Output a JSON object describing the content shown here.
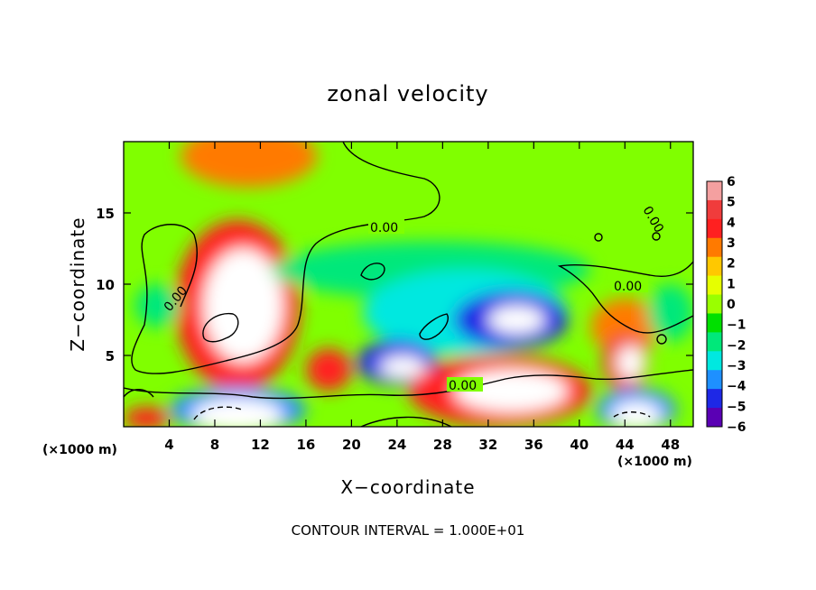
{
  "chart_data": {
    "type": "heatmap",
    "title": "zonal velocity",
    "xlabel": "X−coordinate",
    "ylabel": "Z−coordinate",
    "x_unit_label": "(×1000 m)",
    "y_unit_label": "(×1000 m)",
    "xlim": [
      0,
      50
    ],
    "ylim": [
      0,
      20
    ],
    "x_ticks": [
      "4",
      "8",
      "12",
      "16",
      "20",
      "24",
      "28",
      "32",
      "36",
      "40",
      "44",
      "48"
    ],
    "y_ticks": [
      "5",
      "10",
      "15"
    ],
    "colorbar": {
      "ticks": [
        "6",
        "5",
        "4",
        "3",
        "2",
        "1",
        "0",
        "−1",
        "−2",
        "−3",
        "−4",
        "−5",
        "−6"
      ],
      "colors": [
        "#f4a0a0",
        "#f03c3c",
        "#ff2020",
        "#ff7a00",
        "#ffc800",
        "#e6ff00",
        "#9aff00",
        "#00e000",
        "#00e87a",
        "#00e8e0",
        "#1e90ff",
        "#1e28e6",
        "#5a00b4"
      ]
    },
    "contour_labels": [
      "0.00",
      "0.00",
      "0.00",
      "0.00",
      "0.00",
      "0.00"
    ],
    "footer": "CONTOUR INTERVAL = 1.000E+01",
    "grid": false,
    "regions": [
      {
        "shape": "blob",
        "cx": 10,
        "cy": 8.5,
        "rx": 5.5,
        "ry": 6,
        "value": 4.5
      },
      {
        "shape": "blob",
        "cx": 10.5,
        "cy": 8.5,
        "rx": 3.5,
        "ry": 4,
        "value": 7
      },
      {
        "shape": "blob",
        "cx": 11,
        "cy": 19,
        "rx": 6,
        "ry": 2.2,
        "value": 3.5
      },
      {
        "shape": "blob",
        "cx": 3,
        "cy": 8.5,
        "rx": 2,
        "ry": 1.5,
        "value": -2
      },
      {
        "shape": "blob",
        "cx": 27,
        "cy": 11,
        "rx": 14,
        "ry": 2,
        "value": -2
      },
      {
        "shape": "blob",
        "cx": 30,
        "cy": 8,
        "rx": 9,
        "ry": 3,
        "value": -3
      },
      {
        "shape": "blob",
        "cx": 34,
        "cy": 7.5,
        "rx": 5,
        "ry": 2,
        "value": -5
      },
      {
        "shape": "blob",
        "cx": 34.5,
        "cy": 7.5,
        "rx": 2.5,
        "ry": 1,
        "value": -7
      },
      {
        "shape": "blob",
        "cx": 24,
        "cy": 4.5,
        "rx": 3.5,
        "ry": 1.6,
        "value": -5
      },
      {
        "shape": "blob",
        "cx": 24.5,
        "cy": 4.2,
        "rx": 2,
        "ry": 0.8,
        "value": -7
      },
      {
        "shape": "blob",
        "cx": 33,
        "cy": 2.5,
        "rx": 8,
        "ry": 2.5,
        "value": 4
      },
      {
        "shape": "blob",
        "cx": 34,
        "cy": 2.5,
        "rx": 5,
        "ry": 1.5,
        "value": 7
      },
      {
        "shape": "blob",
        "cx": 44,
        "cy": 7,
        "rx": 3,
        "ry": 2,
        "value": 3.5
      },
      {
        "shape": "blob",
        "cx": 44,
        "cy": 4.5,
        "rx": 2,
        "ry": 2,
        "value": 5
      },
      {
        "shape": "blob",
        "cx": 44.5,
        "cy": 4.5,
        "rx": 1.2,
        "ry": 1.2,
        "value": 7
      },
      {
        "shape": "blob",
        "cx": 10,
        "cy": 1.2,
        "rx": 6,
        "ry": 1.6,
        "value": -4
      },
      {
        "shape": "blob",
        "cx": 10,
        "cy": 0.8,
        "rx": 4,
        "ry": 1.2,
        "value": 7
      },
      {
        "shape": "blob",
        "cx": 45,
        "cy": 1.2,
        "rx": 3.5,
        "ry": 1.5,
        "value": -4
      },
      {
        "shape": "blob",
        "cx": 45,
        "cy": 0.8,
        "rx": 2.2,
        "ry": 1,
        "value": 7
      },
      {
        "shape": "blob",
        "cx": 18,
        "cy": 4,
        "rx": 2,
        "ry": 1.5,
        "value": 4
      },
      {
        "shape": "blob",
        "cx": 2,
        "cy": 0.6,
        "rx": 2,
        "ry": 0.8,
        "value": 4
      },
      {
        "shape": "blob",
        "cx": 48,
        "cy": 8,
        "rx": 2,
        "ry": 2,
        "value": -2
      }
    ]
  }
}
